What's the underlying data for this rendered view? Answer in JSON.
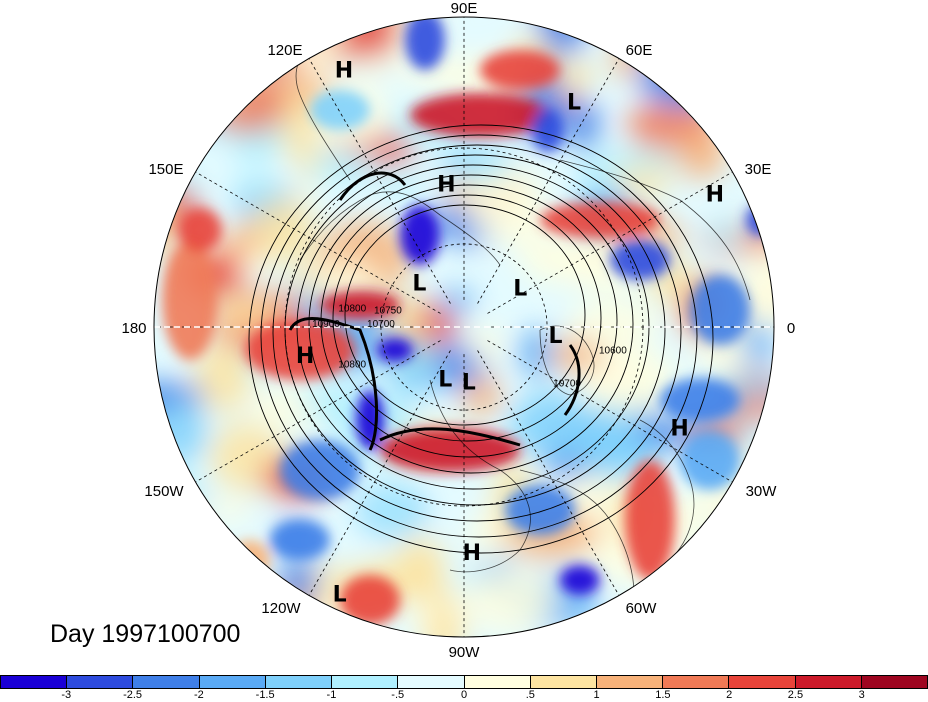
{
  "title": "Day 1997100700",
  "longitude_labels": {
    "lon_90E": "90E",
    "lon_60E": "60E",
    "lon_30E": "30E",
    "lon_0": "0",
    "lon_30W": "30W",
    "lon_60W": "60W",
    "lon_90W": "90W",
    "lon_120W": "120W",
    "lon_150W": "150W",
    "lon_180": "180",
    "lon_150E": "150E",
    "lon_120E": "120E"
  },
  "pressure_centers": [
    {
      "label": "H",
      "lon": 115,
      "lat": 5
    },
    {
      "label": "H",
      "lon": 97,
      "lat": 40
    },
    {
      "label": "L",
      "lon": 64,
      "lat": 12
    },
    {
      "label": "H",
      "lon": 28,
      "lat": 5
    },
    {
      "label": "L",
      "lon": 135,
      "lat": 67
    },
    {
      "label": "L",
      "lon": 35,
      "lat": 65
    },
    {
      "label": "L",
      "lon": -5,
      "lat": 57
    },
    {
      "label": "L",
      "lon": -110,
      "lat": 70
    },
    {
      "label": "L",
      "lon": -85,
      "lat": 70
    },
    {
      "label": "H",
      "lon": -170,
      "lat": 35
    },
    {
      "label": "H",
      "lon": -25,
      "lat": 15
    },
    {
      "label": "H",
      "lon": -88,
      "lat": 18
    },
    {
      "label": "L",
      "lon": -115,
      "lat": 3
    }
  ],
  "contour_labels": [
    {
      "text": "10900",
      "lon": 180,
      "lat": 42
    },
    {
      "text": "10800",
      "lon": 172,
      "lat": 50
    },
    {
      "text": "10800",
      "lon": -160,
      "lat": 48
    },
    {
      "text": "10750",
      "lon": 170,
      "lat": 62
    },
    {
      "text": "10600",
      "lon": -10,
      "lat": 38
    },
    {
      "text": "10700",
      "lon": -30,
      "lat": 48
    },
    {
      "text": "10700",
      "lon": 180,
      "lat": 60
    }
  ],
  "colorbar": {
    "tick_labels": [
      "-3",
      "-2.5",
      "-2",
      "-1.5",
      "-1",
      "-.5",
      "0",
      ".5",
      "1",
      "1.5",
      "2",
      "2.5",
      "3"
    ],
    "colors": [
      "#1a00d6",
      "#2d4bde",
      "#3f7fe8",
      "#5aaaf5",
      "#7fd0fb",
      "#b0f0ff",
      "#e4fbff",
      "#fffee0",
      "#fde4a2",
      "#f7b27a",
      "#f07a56",
      "#e8443a",
      "#cc1a2a",
      "#9e0520"
    ]
  }
}
